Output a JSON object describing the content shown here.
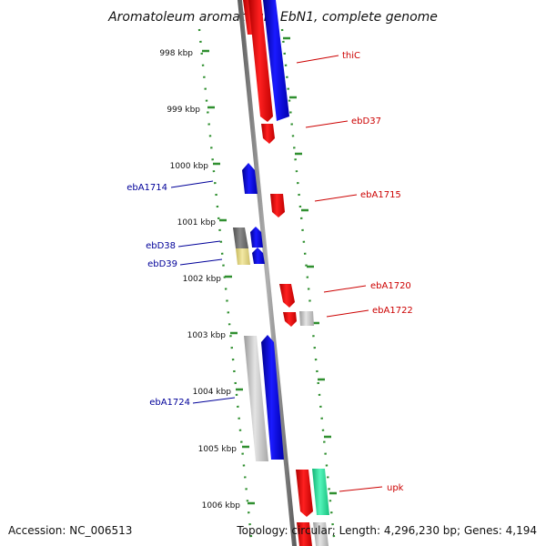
{
  "title": "Aromatoleum aromaticum EbN1, complete genome",
  "footer": {
    "accession": "Accession: NC_006513",
    "summary": "Topology: circular; Length: 4,296,230 bp; Genes: 4,194"
  },
  "colors": {
    "forward_gene": "#ff0000",
    "reverse_gene": "#0000ff",
    "grey_gene": "#c0c0c0",
    "dark_gene": "#777777",
    "yellow_gene": "#e6d889",
    "green_gene": "#2ee6a0",
    "backbone": "#8a8a8a",
    "tick": "#2f8f2f",
    "label_forward": "#cc0000",
    "label_reverse": "#000099"
  },
  "kbp_ticks": [
    "998 kbp",
    "999 kbp",
    "1000 kbp",
    "1001 kbp",
    "1002 kbp",
    "1003 kbp",
    "1004 kbp",
    "1005 kbp",
    "1006 kbp"
  ],
  "gene_labels": [
    {
      "text": "thiC",
      "side": "right"
    },
    {
      "text": "ebD37",
      "side": "right"
    },
    {
      "text": "ebA1714",
      "side": "left"
    },
    {
      "text": "ebA1715",
      "side": "right"
    },
    {
      "text": "ebD38",
      "side": "left"
    },
    {
      "text": "ebD39",
      "side": "left"
    },
    {
      "text": "ebA1720",
      "side": "right"
    },
    {
      "text": "ebA1722",
      "side": "right"
    },
    {
      "text": "ebA1724",
      "side": "left"
    },
    {
      "text": "upk",
      "side": "right"
    }
  ]
}
